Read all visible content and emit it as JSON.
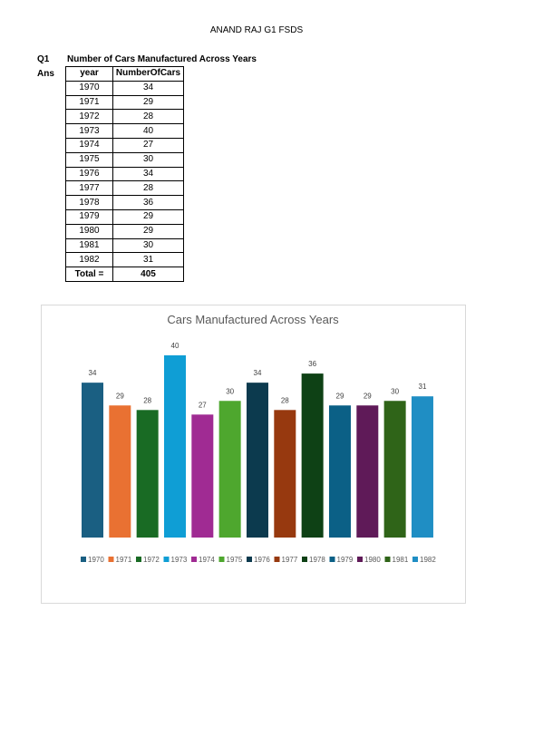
{
  "header": "ANAND RAJ G1 FSDS",
  "question": {
    "label": "Q1",
    "text": "Number of Cars Manufactured Across Years"
  },
  "answer_label": "Ans",
  "table": {
    "columns": [
      "year",
      "NumberOfCars"
    ],
    "rows": [
      [
        1970,
        34
      ],
      [
        1971,
        29
      ],
      [
        1972,
        28
      ],
      [
        1973,
        40
      ],
      [
        1974,
        27
      ],
      [
        1975,
        30
      ],
      [
        1976,
        34
      ],
      [
        1977,
        28
      ],
      [
        1978,
        36
      ],
      [
        1979,
        29
      ],
      [
        1980,
        29
      ],
      [
        1981,
        30
      ],
      [
        1982,
        31
      ]
    ],
    "total": {
      "label": "Total =",
      "value": 405
    }
  },
  "chart": {
    "type": "bar",
    "title": "Cars Manufactured Across Years",
    "categories": [
      "1970",
      "1971",
      "1972",
      "1973",
      "1974",
      "1975",
      "1976",
      "1977",
      "1978",
      "1979",
      "1980",
      "1981",
      "1982"
    ],
    "values": [
      34,
      29,
      28,
      40,
      27,
      30,
      34,
      28,
      36,
      29,
      29,
      30,
      31
    ],
    "colors": [
      "#1a5f82",
      "#e97132",
      "#196b24",
      "#0f9ed5",
      "#a02b93",
      "#4ea72e",
      "#0c3a4e",
      "#97390f",
      "#0e4115",
      "#0b6086",
      "#5f1a58",
      "#2f6418",
      "#1f8ec4"
    ]
  }
}
